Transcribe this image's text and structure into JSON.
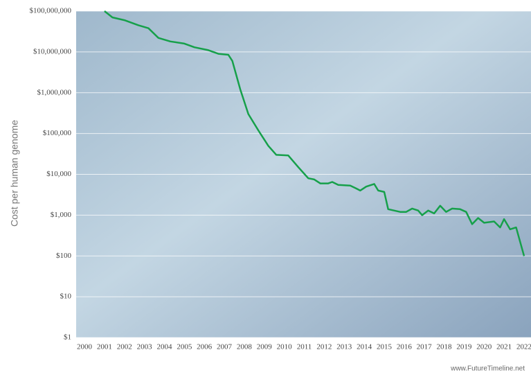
{
  "chart_data": {
    "type": "line",
    "ylabel": "Cost per human genome",
    "credit": "www.FutureTimeline.net",
    "log_y": true,
    "grid": true,
    "xlim": [
      2000,
      2022
    ],
    "xticks": [
      2000,
      2001,
      2002,
      2003,
      2004,
      2005,
      2006,
      2007,
      2008,
      2009,
      2010,
      2011,
      2012,
      2013,
      2014,
      2015,
      2016,
      2017,
      2018,
      2019,
      2020,
      2021,
      2022
    ],
    "ylim": [
      1,
      100000000
    ],
    "yticks": [
      {
        "value": 1,
        "label": "$1"
      },
      {
        "value": 10,
        "label": "$10"
      },
      {
        "value": 100,
        "label": "$100"
      },
      {
        "value": 1000,
        "label": "$1,000"
      },
      {
        "value": 10000,
        "label": "$10,000"
      },
      {
        "value": 100000,
        "label": "$100,000"
      },
      {
        "value": 1000000,
        "label": "$1,000,000"
      },
      {
        "value": 10000000,
        "label": "$10,000,000"
      },
      {
        "value": 100000000,
        "label": "$100,000,000"
      }
    ],
    "x": [
      2001.0,
      2001.4,
      2002.0,
      2002.7,
      2003.2,
      2003.7,
      2004.3,
      2005.0,
      2005.5,
      2006.2,
      2006.7,
      2007.2,
      2007.4,
      2007.8,
      2008.2,
      2008.7,
      2009.2,
      2009.6,
      2010.2,
      2010.7,
      2011.2,
      2011.5,
      2011.8,
      2012.2,
      2012.4,
      2012.7,
      2013.3,
      2013.6,
      2013.8,
      2014.1,
      2014.5,
      2014.7,
      2015.0,
      2015.2,
      2015.8,
      2016.1,
      2016.4,
      2016.7,
      2016.9,
      2017.2,
      2017.5,
      2017.8,
      2018.1,
      2018.4,
      2018.8,
      2019.1,
      2019.4,
      2019.7,
      2020.0,
      2020.5,
      2020.8,
      2021.0,
      2021.3,
      2021.6,
      2022.0
    ],
    "series": [
      {
        "color": "#16a04a",
        "values": [
          100000000,
          70000000,
          60000000,
          45000000,
          38000000,
          22000000,
          18000000,
          16000000,
          13000000,
          11000000,
          9000000,
          8500000,
          6000000,
          1200000,
          300000,
          120000,
          50000,
          30000,
          29000,
          15000,
          8000,
          7500,
          6000,
          6000,
          6500,
          5500,
          5300,
          4500,
          4000,
          5000,
          5800,
          4000,
          3700,
          1400,
          1200,
          1200,
          1450,
          1300,
          1000,
          1300,
          1100,
          1700,
          1200,
          1450,
          1400,
          1200,
          600,
          850,
          650,
          700,
          500,
          800,
          450,
          500,
          100
        ]
      }
    ]
  }
}
